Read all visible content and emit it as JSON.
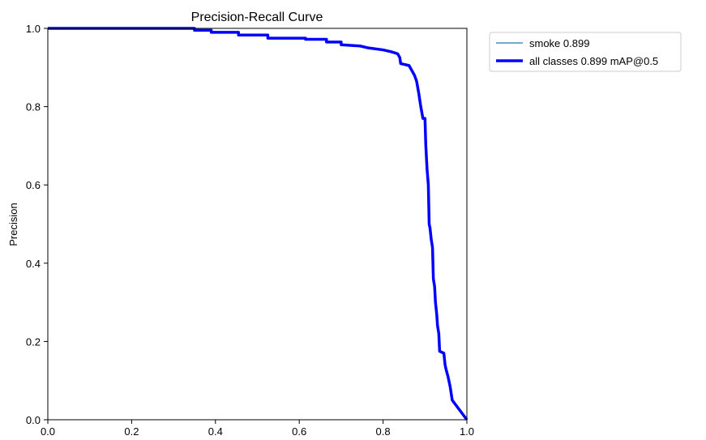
{
  "chart_data": {
    "type": "line",
    "title": "Precision-Recall Curve",
    "xlabel": "",
    "ylabel": "Precision",
    "xlim": [
      0,
      1
    ],
    "ylim": [
      0,
      1
    ],
    "xticks": [
      "0.0",
      "0.2",
      "0.4",
      "0.6",
      "0.8",
      "1.0"
    ],
    "yticks": [
      "0.0",
      "0.2",
      "0.4",
      "0.6",
      "0.8",
      "1.0"
    ],
    "grid": false,
    "legend_position": "outside-top-right",
    "series": [
      {
        "name": "smoke 0.899",
        "color": "#1f77b4",
        "style": "thin",
        "x": [
          0.0,
          0.35,
          0.35,
          0.39,
          0.39,
          0.455,
          0.455,
          0.525,
          0.525,
          0.615,
          0.615,
          0.665,
          0.665,
          0.7,
          0.7,
          0.745,
          0.765,
          0.8,
          0.82,
          0.835,
          0.84,
          0.842,
          0.862,
          0.875,
          0.88,
          0.885,
          0.89,
          0.895,
          0.9,
          0.902,
          0.905,
          0.908,
          0.91,
          0.912,
          0.915,
          0.918,
          0.92,
          0.923,
          0.925,
          0.928,
          0.93,
          0.933,
          0.935,
          0.945,
          0.948,
          0.95,
          0.955,
          0.96,
          0.965,
          1.0
        ],
        "y": [
          1.0,
          1.0,
          0.995,
          0.995,
          0.99,
          0.99,
          0.983,
          0.983,
          0.975,
          0.975,
          0.972,
          0.972,
          0.965,
          0.965,
          0.958,
          0.955,
          0.95,
          0.945,
          0.94,
          0.935,
          0.925,
          0.91,
          0.905,
          0.88,
          0.865,
          0.835,
          0.8,
          0.77,
          0.77,
          0.7,
          0.64,
          0.6,
          0.5,
          0.49,
          0.46,
          0.44,
          0.36,
          0.34,
          0.3,
          0.27,
          0.24,
          0.22,
          0.175,
          0.17,
          0.14,
          0.13,
          0.11,
          0.085,
          0.05,
          0.0
        ]
      },
      {
        "name": "all classes 0.899 mAP@0.5",
        "color": "#0000ff",
        "style": "thick",
        "x": [
          0.0,
          0.35,
          0.35,
          0.39,
          0.39,
          0.455,
          0.455,
          0.525,
          0.525,
          0.615,
          0.615,
          0.665,
          0.665,
          0.7,
          0.7,
          0.745,
          0.765,
          0.8,
          0.82,
          0.835,
          0.84,
          0.842,
          0.862,
          0.875,
          0.88,
          0.885,
          0.89,
          0.895,
          0.9,
          0.902,
          0.905,
          0.908,
          0.91,
          0.912,
          0.915,
          0.918,
          0.92,
          0.923,
          0.925,
          0.928,
          0.93,
          0.933,
          0.935,
          0.945,
          0.948,
          0.95,
          0.955,
          0.96,
          0.965,
          1.0
        ],
        "y": [
          1.0,
          1.0,
          0.995,
          0.995,
          0.99,
          0.99,
          0.983,
          0.983,
          0.975,
          0.975,
          0.972,
          0.972,
          0.965,
          0.965,
          0.958,
          0.955,
          0.95,
          0.945,
          0.94,
          0.935,
          0.925,
          0.91,
          0.905,
          0.88,
          0.865,
          0.835,
          0.8,
          0.77,
          0.77,
          0.7,
          0.64,
          0.6,
          0.5,
          0.49,
          0.46,
          0.44,
          0.36,
          0.34,
          0.3,
          0.27,
          0.24,
          0.22,
          0.175,
          0.17,
          0.14,
          0.13,
          0.11,
          0.085,
          0.05,
          0.0
        ]
      }
    ]
  }
}
